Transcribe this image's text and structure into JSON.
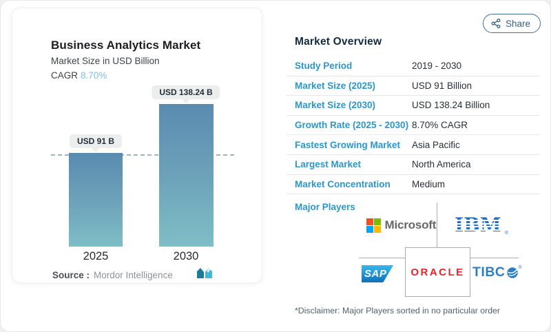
{
  "share": {
    "label": "Share"
  },
  "chart_card": {
    "title": "Business Analytics Market",
    "subtitle": "Market Size in USD Billion",
    "cagr_label": "CAGR",
    "cagr_value": "8.70%",
    "source_label": "Source :",
    "source_value": "Mordor Intelligence"
  },
  "chart_data": {
    "type": "bar",
    "title": "Business Analytics Market",
    "subtitle": "Market Size in USD Billion",
    "categories": [
      "2025",
      "2030"
    ],
    "values": [
      91,
      138.24
    ],
    "bar_labels": [
      "USD 91 B",
      "USD 138.24 B"
    ],
    "unit": "USD Billion",
    "cagr": "8.70%",
    "ylim": [
      0,
      160
    ],
    "reference_line_y": 91,
    "grid": false,
    "bar_gradient": [
      "#5a8bb0",
      "#7fbec6"
    ]
  },
  "overview": {
    "heading": "Market Overview",
    "rows": [
      {
        "label": "Study Period",
        "value": "2019 - 2030"
      },
      {
        "label": "Market Size (2025)",
        "value": "USD 91 Billion"
      },
      {
        "label": "Market Size (2030)",
        "value": "USD 138.24 Billion"
      },
      {
        "label": "Growth Rate (2025 - 2030)",
        "value": "8.70% CAGR"
      },
      {
        "label": "Fastest Growing Market",
        "value": "Asia Pacific"
      },
      {
        "label": "Largest Market",
        "value": "North America"
      },
      {
        "label": "Market Concentration",
        "value": "Medium"
      }
    ],
    "major_players_label": "Major Players",
    "players": [
      "Microsoft",
      "IBM",
      "SAP",
      "ORACLE",
      "TIBCO"
    ],
    "logo_text": {
      "microsoft": "Microsoft",
      "ibm": "IBM",
      "sap": "SAP",
      "oracle": "ORACLE",
      "tibco": "TIBC"
    },
    "disclaimer": "*Disclaimer: Major Players sorted in no particular order"
  },
  "colors": {
    "accent_blue": "#2d96c8",
    "cagr_light_blue": "#82bedf",
    "heading_navy": "#14293c",
    "value_text": "#272f36",
    "share_blue": "#3a617c",
    "bar_top": "#5a8bb0",
    "bar_bottom": "#7fbec6",
    "ms_red": "#f25022",
    "ms_green": "#7fba00",
    "ms_blue": "#00a4ef",
    "ms_yellow": "#ffb900",
    "ibm_blue": "#1f70c1",
    "oracle_red": "#e8242b",
    "tibco_blue": "#2e7fc2"
  }
}
